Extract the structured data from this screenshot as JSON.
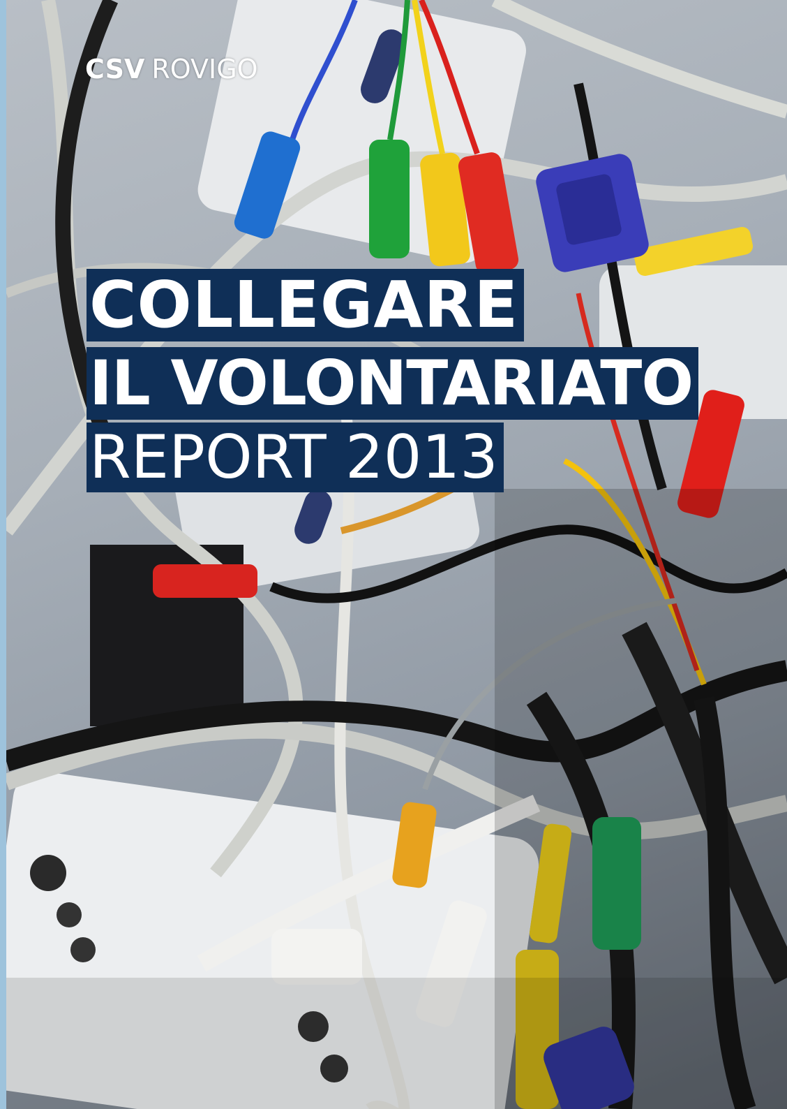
{
  "cover": {
    "publisher": {
      "org": "CSV",
      "city": "ROVIGO"
    },
    "title": {
      "line1": "COLLEGARE",
      "line2": "IL VOLONTARIATO",
      "line3": "REPORT 2013"
    },
    "colors": {
      "title_band": "#0f2f57",
      "title_text": "#ffffff",
      "edge_strip": "#9ec3dc"
    },
    "background_image": "tangled-cables-photo"
  }
}
